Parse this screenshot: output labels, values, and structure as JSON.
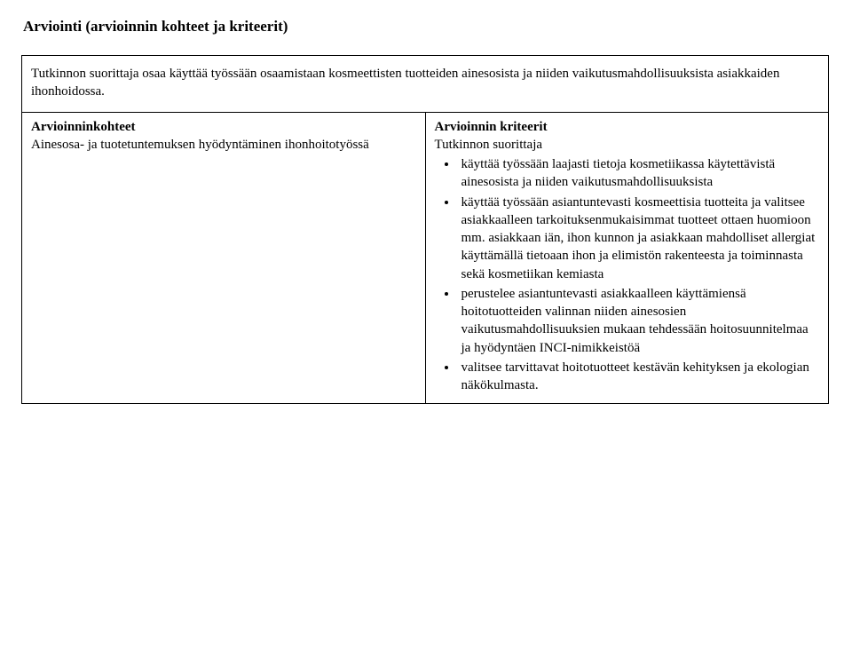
{
  "heading": "Arviointi (arvioinnin kohteet ja kriteerit)",
  "intro": "Tutkinnon suorittaja osaa käyttää työssään osaamistaan kosmeettisten tuotteiden ainesosista ja niiden vaikutusmahdollisuuksista asiakkaiden ihonhoidossa.",
  "left_header": "Arvioinninkohteet",
  "right_header": "Arvioinnin kriteerit",
  "left_body": "Ainesosa- ja tuotetuntemuksen hyödyntäminen ihonhoitotyössä",
  "right_lead": "Tutkinnon suorittaja",
  "bullets": [
    "käyttää työssään laajasti tietoja kosmetiikassa käytettävistä ainesosista ja niiden vaikutusmahdollisuuksista",
    "käyttää työssään asiantuntevasti kosmeettisia tuotteita ja valitsee asiakkaalleen tarkoituksenmukaisimmat tuotteet ottaen huomioon mm. asiakkaan iän, ihon kunnon ja asiakkaan mahdolliset allergiat käyttämällä tietoaan ihon ja elimistön rakenteesta ja toiminnasta sekä kosmetiikan kemiasta",
    "perustelee asiantuntevasti asiakkaalleen käyttämiensä hoitotuotteiden valinnan niiden ainesosien vaikutusmahdollisuuksien mukaan tehdessään hoitosuunnitelmaa ja hyödyntäen INCI-nimikkeistöä",
    "valitsee tarvittavat hoitotuotteet kestävän kehityksen ja ekologian näkökulmasta."
  ]
}
